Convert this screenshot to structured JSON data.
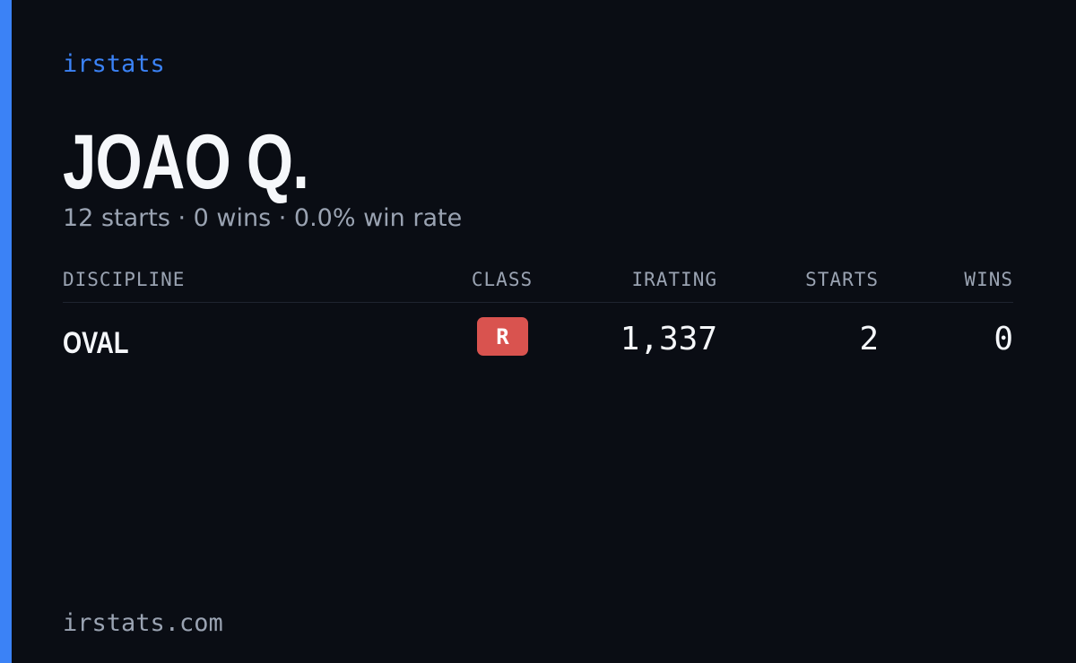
{
  "brand": "irstats",
  "driver": {
    "name": "JOAO Q.",
    "summary": "12 starts · 0 wins · 0.0% win rate"
  },
  "table": {
    "headers": [
      "DISCIPLINE",
      "CLASS",
      "IRATING",
      "STARTS",
      "WINS"
    ],
    "rows": [
      [
        "OVAL",
        "R",
        "1,337",
        "2",
        "0"
      ]
    ]
  },
  "footer": "irstats.com"
}
